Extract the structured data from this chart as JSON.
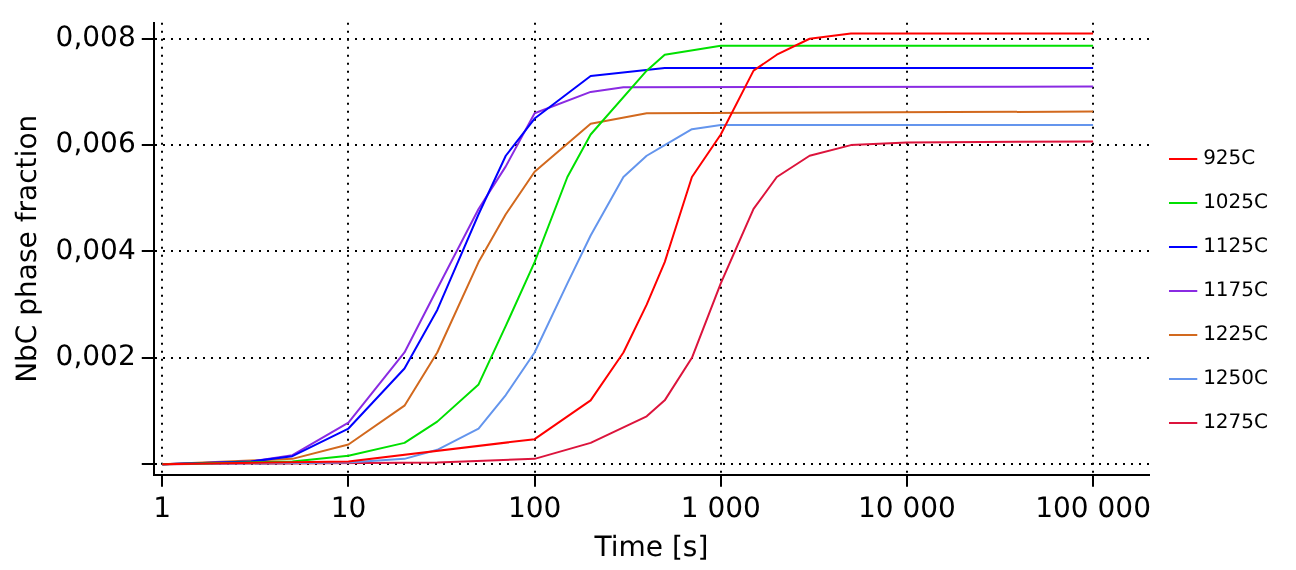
{
  "chart_data": {
    "type": "line",
    "xlabel": "Time [s]",
    "ylabel": "NbC phase fraction",
    "log": "x",
    "grid": true,
    "legend": "right",
    "marker": "none",
    "line_style": "solid",
    "xlim": [
      0.9,
      200000
    ],
    "xticks": [
      1,
      10,
      100,
      {
        "value": 1000,
        "label": "1 000"
      },
      {
        "value": 10000,
        "label": "10 000"
      },
      {
        "value": 100000,
        "label": "100 000"
      }
    ],
    "ylim": [
      -0.0002,
      0.0083
    ],
    "yticks": [
      {
        "value": 0,
        "label": null
      },
      {
        "value": 0.002,
        "label": "0,002"
      },
      {
        "value": 0.004,
        "label": "0,004"
      },
      {
        "value": 0.006,
        "label": "0,006"
      },
      {
        "value": 0.008,
        "label": "0,008"
      }
    ],
    "series": [
      {
        "name": "925C",
        "color": "#ff0000",
        "x": [
          1,
          10,
          100,
          200,
          300,
          400,
          500,
          700,
          1000,
          1500,
          2000,
          3000,
          5000,
          100000
        ],
        "values": [
          0,
          5e-05,
          0.00047,
          0.0012,
          0.0021,
          0.003,
          0.0038,
          0.0054,
          0.0062,
          0.0074,
          0.0077,
          0.008,
          0.0081,
          0.0081
        ]
      },
      {
        "name": "1025C",
        "color": "#00e000",
        "x": [
          1,
          5,
          10,
          20,
          30,
          50,
          70,
          100,
          150,
          200,
          400,
          500,
          1000,
          100000
        ],
        "values": [
          0,
          5e-05,
          0.00016,
          0.0004,
          0.0008,
          0.0015,
          0.0026,
          0.0038,
          0.0054,
          0.0062,
          0.0074,
          0.0077,
          0.00787,
          0.00787
        ]
      },
      {
        "name": "1125C",
        "color": "#0000ff",
        "x": [
          1,
          3,
          5,
          10,
          20,
          30,
          50,
          70,
          100,
          200,
          500,
          100000
        ],
        "values": [
          0,
          5e-05,
          0.00015,
          0.00067,
          0.0018,
          0.0029,
          0.0047,
          0.0058,
          0.0065,
          0.0073,
          0.00745,
          0.00745
        ]
      },
      {
        "name": "1175C",
        "color": "#8a2be2",
        "x": [
          1,
          3,
          5,
          10,
          20,
          30,
          50,
          70,
          100,
          200,
          300,
          100000
        ],
        "values": [
          0,
          5e-05,
          0.00017,
          0.00078,
          0.0021,
          0.0033,
          0.0048,
          0.0056,
          0.0066,
          0.007,
          0.00709,
          0.0071
        ]
      },
      {
        "name": "1225C",
        "color": "#d2691e",
        "x": [
          1,
          5,
          10,
          20,
          30,
          50,
          70,
          100,
          200,
          400,
          100000
        ],
        "values": [
          0,
          0.0001,
          0.00037,
          0.0011,
          0.0021,
          0.0038,
          0.0047,
          0.0055,
          0.0064,
          0.0066,
          0.00663
        ]
      },
      {
        "name": "1250C",
        "color": "#6495ed",
        "x": [
          1,
          10,
          20,
          30,
          50,
          70,
          100,
          150,
          200,
          300,
          400,
          500,
          700,
          1000,
          100000
        ],
        "values": [
          0,
          3e-05,
          0.0001,
          0.00027,
          0.00067,
          0.0013,
          0.0021,
          0.0034,
          0.0043,
          0.0054,
          0.0058,
          0.006,
          0.0063,
          0.00638,
          0.00638
        ]
      },
      {
        "name": "1275C",
        "color": "#dc143c",
        "x": [
          1,
          30,
          100,
          200,
          400,
          500,
          700,
          1000,
          1500,
          2000,
          3000,
          5000,
          10000,
          100000
        ],
        "values": [
          0,
          3e-05,
          0.0001,
          0.0004,
          0.0009,
          0.0012,
          0.002,
          0.0034,
          0.0048,
          0.0054,
          0.0058,
          0.006,
          0.00605,
          0.00607
        ]
      }
    ]
  }
}
